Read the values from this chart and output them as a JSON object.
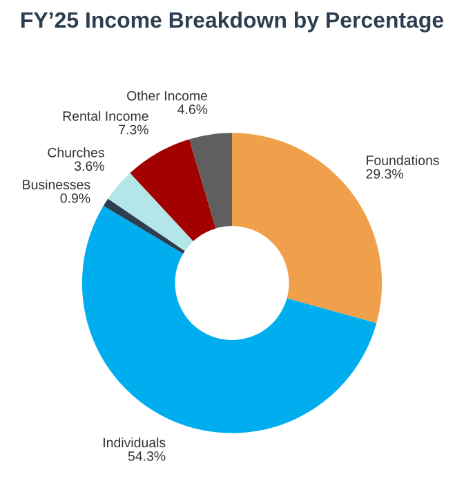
{
  "chart_data": {
    "type": "donut",
    "title": "FY’25 Income Breakdown by Percentage",
    "categories": [
      "Foundations",
      "Individuals",
      "Businesses",
      "Churches",
      "Rental Income",
      "Other Income"
    ],
    "values": [
      29.3,
      54.3,
      0.9,
      3.6,
      7.3,
      4.6
    ],
    "value_labels": [
      "29.3%",
      "54.3%",
      "0.9%",
      "3.6%",
      "7.3%",
      "4.6%"
    ],
    "colors": [
      "#f0a04b",
      "#00aeef",
      "#2d3e50",
      "#b3e6e8",
      "#a30000",
      "#5f5f5f"
    ],
    "legend": false
  }
}
